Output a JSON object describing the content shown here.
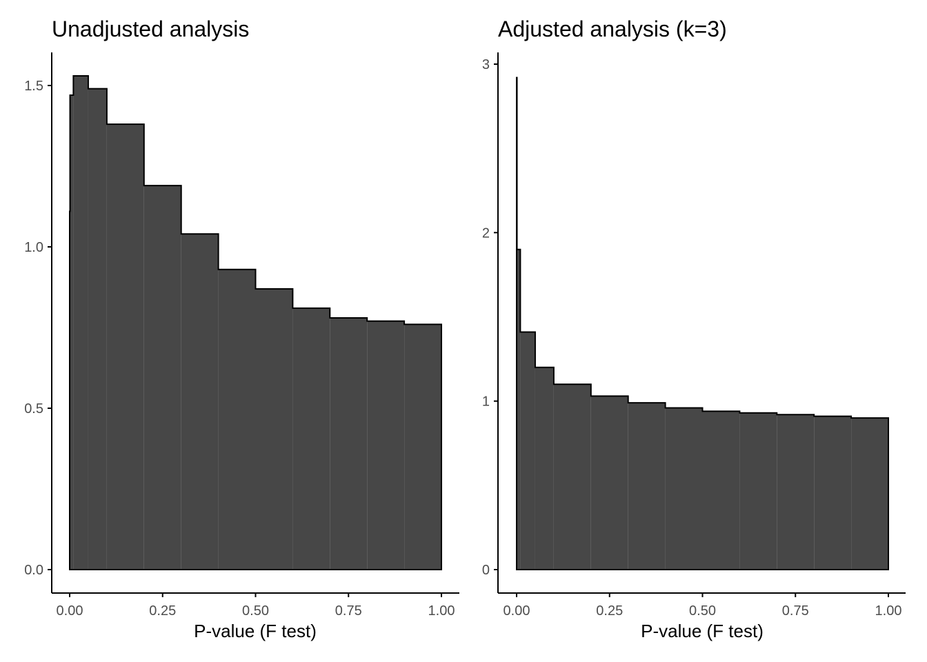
{
  "chart_data": [
    {
      "type": "bar",
      "title": "Unadjusted analysis",
      "xlabel": "P-value (F test)",
      "ylabel": "",
      "xlim": [
        0,
        1
      ],
      "ylim": [
        0,
        1.6
      ],
      "xticks": [
        0,
        0.25,
        0.5,
        0.75,
        1
      ],
      "xtick_labels": [
        "0.00",
        "0.25",
        "0.50",
        "0.75",
        "1.00"
      ],
      "yticks": [
        0,
        0.5,
        1,
        1.5
      ],
      "ytick_labels": [
        "0.0",
        "0.5",
        "1.0",
        "1.5"
      ],
      "grid": false,
      "bins": [
        {
          "x0": 0.0,
          "x1": 0.001,
          "value": 1.11
        },
        {
          "x0": 0.001,
          "x2": null,
          "x1": 0.01,
          "value": 1.47
        },
        {
          "x0": 0.01,
          "x1": 0.05,
          "value": 1.53
        },
        {
          "x0": 0.05,
          "x1": 0.1,
          "value": 1.49
        },
        {
          "x0": 0.1,
          "x1": 0.2,
          "value": 1.38
        },
        {
          "x0": 0.2,
          "x1": 0.3,
          "value": 1.19
        },
        {
          "x0": 0.3,
          "x1": 0.4,
          "value": 1.04
        },
        {
          "x0": 0.4,
          "x1": 0.5,
          "value": 0.93
        },
        {
          "x0": 0.5,
          "x1": 0.6,
          "value": 0.87
        },
        {
          "x0": 0.6,
          "x1": 0.7,
          "value": 0.81
        },
        {
          "x0": 0.7,
          "x1": 0.8,
          "value": 0.78
        },
        {
          "x0": 0.8,
          "x1": 0.9,
          "value": 0.77
        },
        {
          "x0": 0.9,
          "x1": 1.0,
          "value": 0.76
        }
      ]
    },
    {
      "type": "bar",
      "title": "Adjusted analysis (k=3)",
      "xlabel": "P-value (F test)",
      "ylabel": "",
      "xlim": [
        0,
        1
      ],
      "ylim": [
        0,
        3
      ],
      "xticks": [
        0,
        0.25,
        0.5,
        0.75,
        1
      ],
      "xtick_labels": [
        "0.00",
        "0.25",
        "0.50",
        "0.75",
        "1.00"
      ],
      "yticks": [
        0,
        1,
        2,
        3
      ],
      "ytick_labels": [
        "0",
        "1",
        "2",
        "3"
      ],
      "grid": false,
      "bins": [
        {
          "x0": 0.0,
          "x1": 0.001,
          "value": 2.92
        },
        {
          "x0": 0.001,
          "x1": 0.01,
          "value": 1.9
        },
        {
          "x0": 0.01,
          "x1": 0.05,
          "value": 1.41
        },
        {
          "x0": 0.05,
          "x1": 0.1,
          "value": 1.2
        },
        {
          "x0": 0.1,
          "x1": 0.2,
          "value": 1.1
        },
        {
          "x0": 0.2,
          "x1": 0.3,
          "value": 1.03
        },
        {
          "x0": 0.3,
          "x1": 0.4,
          "value": 0.99
        },
        {
          "x0": 0.4,
          "x1": 0.5,
          "value": 0.96
        },
        {
          "x0": 0.5,
          "x1": 0.6,
          "value": 0.94
        },
        {
          "x0": 0.6,
          "x1": 0.7,
          "value": 0.93
        },
        {
          "x0": 0.7,
          "x1": 0.8,
          "value": 0.92
        },
        {
          "x0": 0.8,
          "x1": 0.9,
          "value": 0.91
        },
        {
          "x0": 0.9,
          "x1": 1.0,
          "value": 0.9
        }
      ]
    }
  ],
  "colors": {
    "bar_fill": "#474747",
    "bar_stroke": "#000000",
    "axis_line": "#000000",
    "tick_text": "#4d4d4d"
  }
}
